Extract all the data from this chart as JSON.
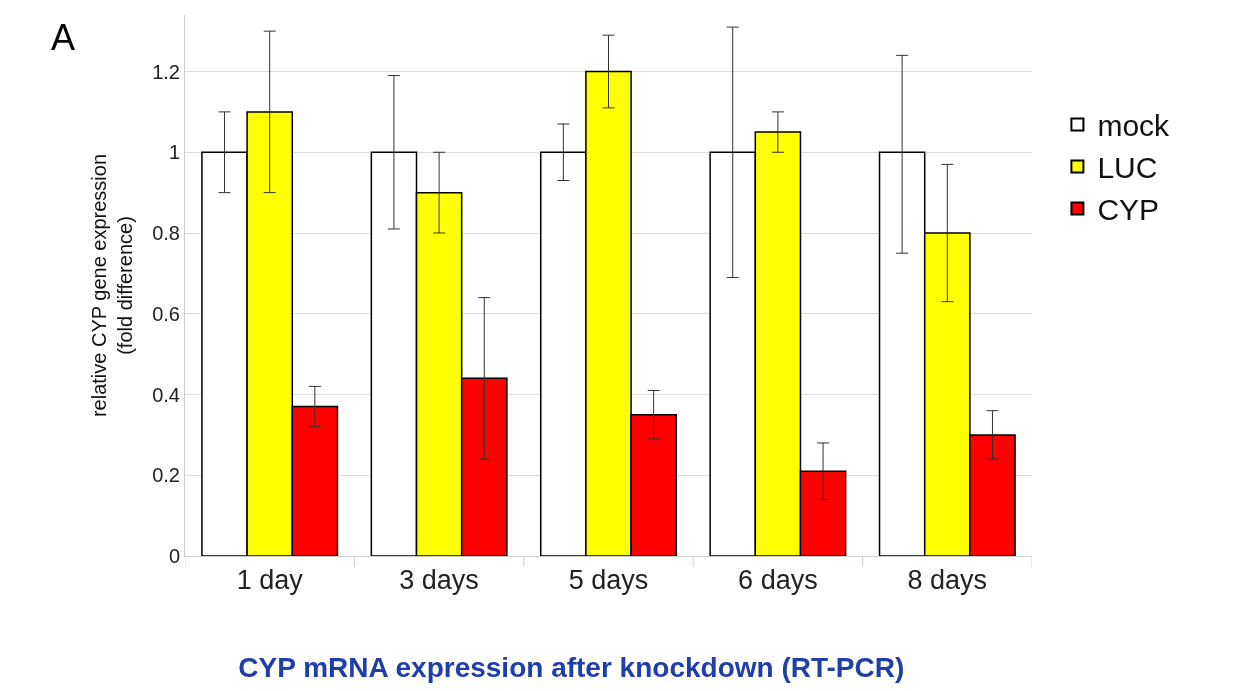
{
  "chart_data": {
    "type": "bar",
    "title": "CYP mRNA expression after knockdown (RT-PCR)",
    "ylabel": "relative CYP gene expression\n(fold difference)",
    "annotations": [
      "A"
    ],
    "categories": [
      "1 day",
      "3 days",
      "5 days",
      "6 days",
      "8 days"
    ],
    "series": [
      {
        "name": "mock",
        "color": "#ffffff",
        "values": [
          1,
          1,
          1,
          1,
          1
        ],
        "errors": [
          [
            0.9,
            1.1
          ],
          [
            0.81,
            1.19
          ],
          [
            0.93,
            1.07
          ],
          [
            0.69,
            1.31
          ],
          [
            0.75,
            1.24
          ]
        ]
      },
      {
        "name": "LUC",
        "color": "#ffff00",
        "values": [
          1.1,
          0.9,
          1.2,
          1.05,
          0.8
        ],
        "errors": [
          [
            0.9,
            1.3
          ],
          [
            0.8,
            1.0
          ],
          [
            1.11,
            1.29
          ],
          [
            1.0,
            1.1
          ],
          [
            0.63,
            0.97
          ]
        ]
      },
      {
        "name": "CYP",
        "color": "#ff0000",
        "values": [
          0.37,
          0.44,
          0.35,
          0.21,
          0.3
        ],
        "errors": [
          [
            0.32,
            0.42
          ],
          [
            0.24,
            0.64
          ],
          [
            0.29,
            0.41
          ],
          [
            0.14,
            0.28
          ],
          [
            0.24,
            0.36
          ]
        ]
      }
    ],
    "ylim": [
      0,
      1.34
    ],
    "yticks": [
      0,
      0.2,
      0.4,
      0.6,
      0.8,
      1,
      1.2
    ],
    "grid": "y",
    "legend": "right"
  }
}
